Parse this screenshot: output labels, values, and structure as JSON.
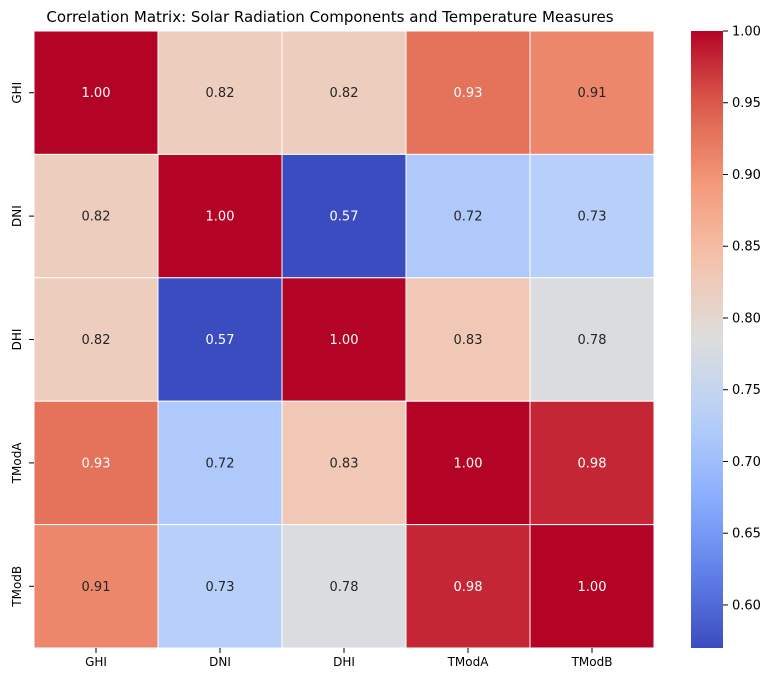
{
  "chart_data": {
    "type": "heatmap",
    "title": "Correlation Matrix: Solar Radiation Components and Temperature Measures",
    "xlabel": "",
    "ylabel": "",
    "x_categories": [
      "GHI",
      "DNI",
      "DHI",
      "TModA",
      "TModB"
    ],
    "y_categories": [
      "GHI",
      "DNI",
      "DHI",
      "TModA",
      "TModB"
    ],
    "values": [
      [
        1.0,
        0.82,
        0.82,
        0.93,
        0.91
      ],
      [
        0.82,
        1.0,
        0.57,
        0.72,
        0.73
      ],
      [
        0.82,
        0.57,
        1.0,
        0.83,
        0.78
      ],
      [
        0.93,
        0.72,
        0.83,
        1.0,
        0.98
      ],
      [
        0.91,
        0.73,
        0.78,
        0.98,
        1.0
      ]
    ],
    "value_format": "0.00",
    "colormap": "coolwarm",
    "colorbar": {
      "min": 0.57,
      "max": 1.0,
      "ticks": [
        0.6,
        0.65,
        0.7,
        0.75,
        0.8,
        0.85,
        0.9,
        0.95,
        1.0
      ],
      "tick_labels": [
        "0.60",
        "0.65",
        "0.70",
        "0.75",
        "0.80",
        "0.85",
        "0.90",
        "0.95",
        "1.00"
      ]
    },
    "grid": false,
    "colors": {
      "low": "#3b4cc0",
      "mid": "#dddddd",
      "high": "#b40426",
      "label_dark": "#262626",
      "label_light": "#ffffff",
      "cell_border": "#ffffff"
    }
  }
}
